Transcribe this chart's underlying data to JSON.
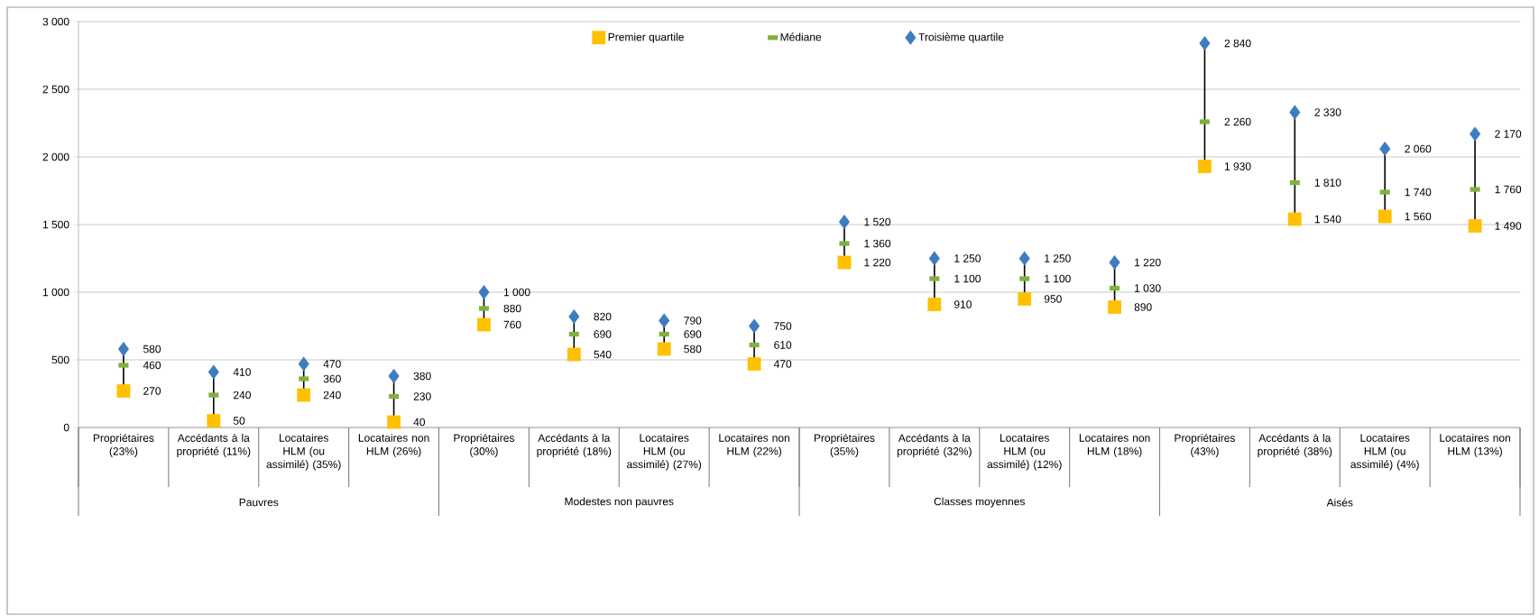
{
  "chart_data": {
    "type": "scatter",
    "categories": [
      "Propriétaires (23%)",
      "Accédants à la propriété (11%)",
      "Locataires HLM (ou assimilé) (35%)",
      "Locataires non HLM (26%)",
      "Propriétaires (30%)",
      "Accédants à la propriété (18%)",
      "Locataires HLM (ou assimilé) (27%)",
      "Locataires non HLM (22%)",
      "Propriétaires (35%)",
      "Accédants à la propriété (32%)",
      "Locataires HLM (ou assimilé) (12%)",
      "Locataires non HLM (18%)",
      "Propriétaires (43%)",
      "Accédants à la propriété (38%)",
      "Locataires HLM (ou assimilé) (4%)",
      "Locataires non HLM (13%)"
    ],
    "annotations": [
      "Pauvres",
      "Modestes non pauvres",
      "Classes moyennes",
      "Aisés"
    ],
    "series": [
      {
        "name": "Premier quartile",
        "color": "#ffc000",
        "marker": "square",
        "values": [
          270,
          50,
          240,
          40,
          760,
          540,
          580,
          470,
          1220,
          910,
          950,
          890,
          1930,
          1540,
          1560,
          1490
        ],
        "value_labels": [
          "270",
          "50",
          "240",
          "40",
          "760",
          "540",
          "580",
          "470",
          "1 220",
          "910",
          "950",
          "890",
          "1 930",
          "1 540",
          "1 560",
          "1 490"
        ]
      },
      {
        "name": "Médiane",
        "color": "#7fb13c",
        "values": [
          460,
          240,
          360,
          230,
          880,
          690,
          690,
          610,
          1360,
          1100,
          1100,
          1030,
          2260,
          1810,
          1740,
          1760
        ],
        "value_labels": [
          "460",
          "240",
          "360",
          "230",
          "880",
          "690",
          "690",
          "610",
          "1 360",
          "1 100",
          "1 100",
          "1 030",
          "2 260",
          "1 810",
          "1 740",
          "1 760"
        ]
      },
      {
        "name": "Troisième quartile",
        "color": "#3e7cc0",
        "marker": "diamond",
        "values": [
          580,
          410,
          470,
          380,
          1000,
          820,
          790,
          750,
          1520,
          1250,
          1250,
          1220,
          2840,
          2330,
          2060,
          2170
        ],
        "value_labels": [
          "580",
          "410",
          "470",
          "380",
          "1 000",
          "820",
          "790",
          "750",
          "1 520",
          "1 250",
          "1 250",
          "1 220",
          "2 840",
          "2 330",
          "2 060",
          "2 170"
        ]
      }
    ],
    "ylim": [
      0,
      3000
    ],
    "yticks": [
      {
        "value": 0,
        "label": "0"
      },
      {
        "value": 500,
        "label": "500"
      },
      {
        "value": 1000,
        "label": "1 000"
      },
      {
        "value": 1500,
        "label": "1 500"
      },
      {
        "value": 2000,
        "label": "2 000"
      },
      {
        "value": 2500,
        "label": "2 500"
      },
      {
        "value": 3000,
        "label": "3 000"
      }
    ],
    "grid": "y",
    "legend": "top"
  }
}
